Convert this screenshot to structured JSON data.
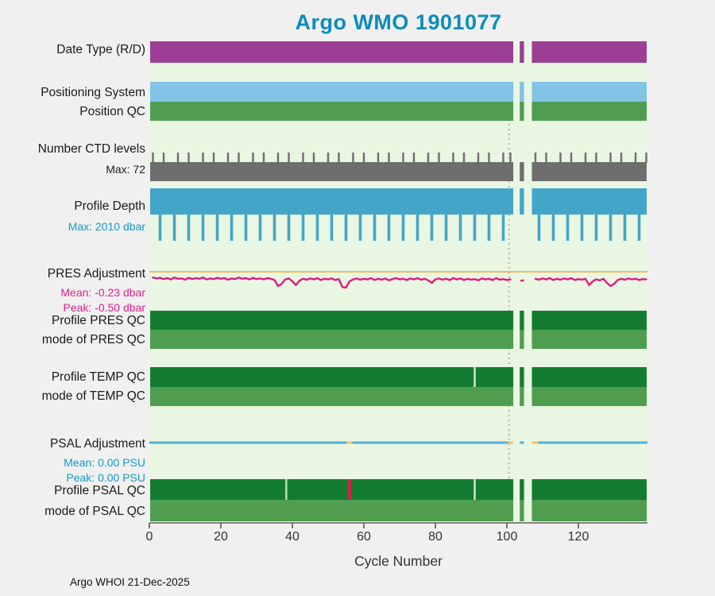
{
  "title": "Argo WMO 1901077",
  "footer": "Argo WHOI 21-Dec-2025",
  "xlabel": "Cycle Number",
  "colors": {
    "figure_bg": "#f0f0f0",
    "plot_bg": "#e9f6e2",
    "title": "#0d8cbc",
    "blue_text": "#1499cc",
    "magenta_text": "#e0218a",
    "axis_text": "#333333",
    "date_type_bar": "#9c3d96",
    "positioning_bar": "#82c3e6",
    "position_qc_bar": "#4f9e50",
    "ctd_bar": "#6e6e6e",
    "depth_bar": "#43a5c9",
    "pres_line": "#df1b7d",
    "ref_line": "#f0a838",
    "dark_green": "#147c31",
    "mid_green": "#4f9e50",
    "psal_line": "#55b0d5",
    "psal_flag": "#f3c268",
    "dotted_line": "#b4b4b4",
    "axis_line": "#444444"
  },
  "chart_data": {
    "type": "multi-row-status-timeline",
    "title": "Argo WMO 1901077",
    "xlabel": "Cycle Number",
    "x_range": [
      0,
      139
    ],
    "x_ticks": [
      0,
      20,
      40,
      60,
      80,
      100,
      120
    ],
    "gaps_cycles": [
      [
        101.8,
        103.6
      ],
      [
        104.8,
        107.0
      ]
    ],
    "dotted_line_cycle": 100.6,
    "rows": {
      "date_type": {
        "label": "Date Type (R/D)"
      },
      "positioning": {
        "label": "Positioning System"
      },
      "position_qc": {
        "label": "Position QC"
      },
      "ctd": {
        "label": "Number CTD levels",
        "sublabel": "Max: 72",
        "max": 72,
        "base_value": 58,
        "tall_cycles": [
          1,
          4,
          8,
          11,
          15,
          18,
          22,
          25,
          29,
          32,
          36,
          39,
          43,
          46,
          50,
          53,
          57,
          60,
          64,
          67,
          71,
          74,
          78,
          81,
          85,
          88,
          92,
          95,
          99,
          101,
          108,
          111,
          115,
          118,
          122,
          125,
          129,
          132,
          136,
          139
        ]
      },
      "depth": {
        "label": "Profile Depth",
        "sublabel": "Max: 2010 dbar",
        "max": 2010,
        "base_value": 1000,
        "deep_cycles": [
          3,
          7,
          11,
          15,
          19,
          23,
          27,
          31,
          35,
          39,
          43,
          47,
          51,
          55,
          59,
          63,
          67,
          71,
          75,
          79,
          83,
          87,
          91,
          95,
          99,
          103,
          109,
          113,
          117,
          121,
          125,
          129,
          133,
          137
        ]
      },
      "pres_adj": {
        "label": "PRES Adjustment",
        "mean_label": "Mean: -0.23 dbar",
        "peak_label": "Peak: -0.50 dbar",
        "mean": -0.23,
        "peak": -0.5,
        "values_dbar": [
          -0.18,
          -0.21,
          -0.19,
          -0.23,
          -0.2,
          -0.24,
          -0.18,
          -0.22,
          -0.21,
          -0.25,
          -0.19,
          -0.23,
          -0.2,
          -0.22,
          -0.18,
          -0.24,
          -0.21,
          -0.23,
          -0.19,
          -0.22,
          -0.2,
          -0.25,
          -0.21,
          -0.23,
          -0.18,
          -0.22,
          -0.2,
          -0.24,
          -0.19,
          -0.23,
          -0.21,
          -0.24,
          -0.2,
          -0.22,
          -0.26,
          -0.45,
          -0.38,
          -0.24,
          -0.21,
          -0.3,
          -0.42,
          -0.28,
          -0.22,
          -0.25,
          -0.21,
          -0.24,
          -0.2,
          -0.26,
          -0.22,
          -0.24,
          -0.21,
          -0.26,
          -0.23,
          -0.48,
          -0.5,
          -0.3,
          -0.24,
          -0.21,
          -0.25,
          -0.22,
          -0.24,
          -0.2,
          -0.26,
          -0.22,
          -0.25,
          -0.21,
          -0.27,
          -0.23,
          -0.2,
          -0.24,
          -0.22,
          -0.26,
          -0.21,
          -0.24,
          -0.2,
          -0.25,
          -0.22,
          -0.27,
          -0.35,
          -0.24,
          -0.21,
          -0.25,
          -0.22,
          -0.26,
          -0.2,
          -0.24,
          -0.21,
          -0.26,
          -0.22,
          -0.25,
          -0.23,
          -0.27,
          -0.21,
          -0.24,
          -0.22,
          -0.26,
          -0.2,
          -0.25,
          -0.23,
          -0.26,
          -0.24,
          null,
          null,
          -0.28,
          -0.27,
          null,
          null,
          -0.22,
          -0.25,
          -0.21,
          -0.24,
          -0.2,
          -0.26,
          -0.22,
          -0.25,
          -0.21,
          -0.24,
          -0.2,
          -0.26,
          -0.23,
          -0.25,
          -0.22,
          -0.42,
          -0.3,
          -0.24,
          -0.27,
          -0.22,
          -0.35,
          -0.45,
          -0.38,
          -0.26,
          -0.22,
          -0.25,
          -0.21,
          -0.24,
          -0.22,
          -0.26,
          -0.23,
          -0.24
        ]
      },
      "profile_pres_qc": {
        "label": "Profile PRES QC"
      },
      "mode_pres_qc": {
        "label": "mode of PRES QC"
      },
      "profile_temp_qc": {
        "label": "Profile TEMP QC",
        "marks": [
          {
            "cycle": 91,
            "color": "#cfe9cc",
            "width": 2.5
          }
        ]
      },
      "mode_temp_qc": {
        "label": "mode of TEMP QC"
      },
      "psal_adj": {
        "label": "PSAL Adjustment",
        "mean_label": "Mean: 0.00 PSU",
        "peak_label": "Peak: 0.00 PSU",
        "mean": 0.0,
        "peak": 0.0,
        "flag_segments_cycles": [
          [
            55.2,
            56.8
          ],
          [
            100.3,
            101.9
          ],
          [
            106.6,
            108.8
          ]
        ]
      },
      "profile_psal_qc": {
        "label": "Profile PSAL QC",
        "marks": [
          {
            "cycle": 38.3,
            "color": "#b9ddb6",
            "width": 2.5
          },
          {
            "cycle": 56,
            "color": "#d42147",
            "width": 4
          },
          {
            "cycle": 91,
            "color": "#cfe9cc",
            "width": 2.5
          }
        ]
      },
      "mode_psal_qc": {
        "label": "mode of PSAL QC"
      }
    }
  }
}
